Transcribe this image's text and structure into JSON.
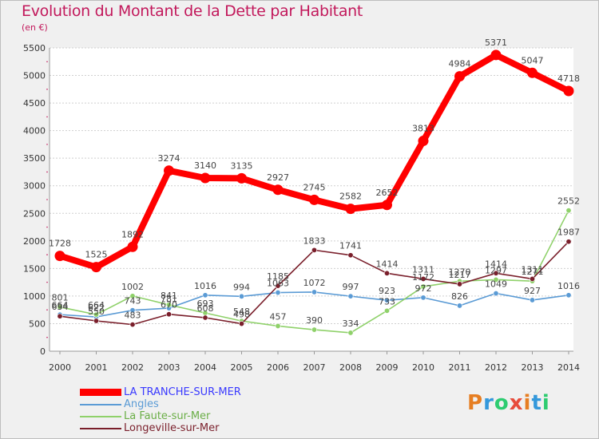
{
  "header": {
    "title": "Evolution du Montant de la Dette par Habitant",
    "unit": "(en €)"
  },
  "logo": {
    "text": "Proxiti",
    "colors": [
      "#e67e22",
      "#3498db",
      "#2ecc71",
      "#e74c3c"
    ]
  },
  "chart_data": {
    "type": "line",
    "title": "Evolution du Montant de la Dette par Habitant",
    "subtitle": "(en €)",
    "xlabel": "",
    "ylabel": "",
    "x": [
      "2000",
      "2001",
      "2002",
      "2003",
      "2004",
      "2005",
      "2006",
      "2007",
      "2008",
      "2009",
      "2010",
      "2011",
      "2012",
      "2013",
      "2014"
    ],
    "ylim": [
      0,
      5500
    ],
    "yticks": [
      "0",
      "500",
      "1000",
      "1500",
      "2000",
      "2500",
      "3000",
      "3500",
      "4000",
      "4500",
      "5000",
      "5500"
    ],
    "grid": "horizontal",
    "legend_position": "bottom-left",
    "series": [
      {
        "name": "LA TRANCHE-SUR-MER",
        "color": "#ff0000",
        "label_color": "#3a3aff",
        "values": [
          1728,
          1525,
          1892,
          3274,
          3140,
          3135,
          2927,
          2745,
          2582,
          2652,
          3813,
          4984,
          5371,
          5047,
          4718
        ],
        "labels": [
          "1728",
          "1525",
          "1892",
          "3274",
          "3140",
          "3135",
          "2927",
          "2745",
          "2582",
          "2652",
          "3813",
          "4984",
          "5371",
          "5047",
          "4718"
        ]
      },
      {
        "name": "Angles",
        "color": "#5b9bd5",
        "label_color": "#5b9bd5",
        "values": [
          664,
          622,
          743,
          781,
          1016,
          994,
          1063,
          1072,
          997,
          923,
          972,
          826,
          1049,
          927,
          1016
        ],
        "labels": [
          "664",
          "622",
          "743",
          "781",
          "1016",
          "994",
          "1063",
          "1072",
          "997",
          "923",
          "972",
          "826",
          "1049",
          "927",
          "1016"
        ]
      },
      {
        "name": "La Faute-sur-Mer",
        "color": "#8fd16a",
        "label_color": "#8fd16a",
        "values": [
          801,
          664,
          1002,
          841,
          693,
          548,
          457,
          390,
          334,
          733,
          1172,
          1270,
          1297,
          1271,
          2552
        ],
        "labels": [
          "801",
          "664",
          "1002",
          "841",
          "693",
          "548",
          "457",
          "390",
          "334",
          "733",
          "1172",
          "1270",
          "1297",
          "1271",
          "2552"
        ]
      },
      {
        "name": "Longeville-sur-Mer",
        "color": "#7a1f2b",
        "label_color": "#7a1f2b",
        "values": [
          634,
          550,
          483,
          670,
          608,
          498,
          1185,
          1833,
          1741,
          1414,
          1311,
          1217,
          1414,
          1311,
          1987
        ],
        "labels": [
          "634",
          "550",
          "483",
          "670",
          "608",
          "498",
          "1185",
          "1833",
          "1741",
          "1414",
          "1311",
          "1217",
          "1414",
          "1311",
          "1987"
        ]
      }
    ]
  }
}
